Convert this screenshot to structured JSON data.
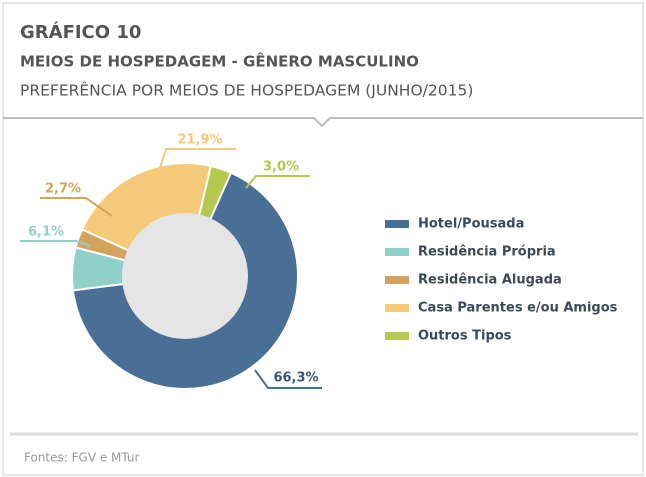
{
  "chart_data": {
    "type": "donut",
    "label": "GRÁFICO 10",
    "title": "MEIOS DE HOSPEDAGEM - GÊNERO MASCULINO",
    "subtitle": "PREFERÊNCIA POR MEIOS DE HOSPEDAGEM (JUNHO/2015)",
    "source": "Fontes: FGV e MTur",
    "categories": [
      "Hotel/Pousada",
      "Residência Própria",
      "Residência Alugada",
      "Casa Parentes e/ou Amigos",
      "Outros Tipos"
    ],
    "values": [
      66.3,
      6.1,
      2.7,
      21.9,
      3.0
    ],
    "value_labels": [
      "66,3%",
      "6,1%",
      "2,7%",
      "21,9%",
      "3,0%"
    ],
    "colors": [
      "#4a6f96",
      "#8fd1c8",
      "#d4a45e",
      "#f5c97a",
      "#b5c94e"
    ],
    "legend": "right"
  }
}
